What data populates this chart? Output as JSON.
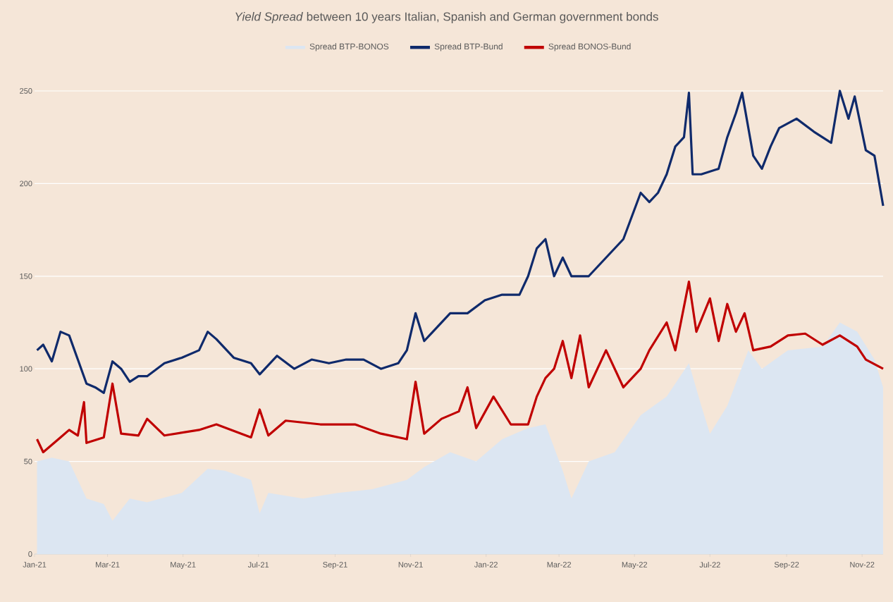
{
  "chart_data": {
    "type": "line",
    "title": "*Yield Spread* between 10 years Italian, Spanish and German government bonds",
    "xlim": [
      "2021-01-01",
      "2022-11-18"
    ],
    "ylim": [
      0,
      250
    ],
    "xticks": [
      {
        "value": "2021-01-01",
        "label": "Jan-21"
      },
      {
        "value": "2021-03-01",
        "label": "Mar-21"
      },
      {
        "value": "2021-05-01",
        "label": "May-21"
      },
      {
        "value": "2021-07-01",
        "label": "Jul-21"
      },
      {
        "value": "2021-09-01",
        "label": "Sep-21"
      },
      {
        "value": "2021-11-01",
        "label": "Nov-21"
      },
      {
        "value": "2022-01-01",
        "label": "Jan-22"
      },
      {
        "value": "2022-03-01",
        "label": "Mar-22"
      },
      {
        "value": "2022-05-01",
        "label": "May-22"
      },
      {
        "value": "2022-07-01",
        "label": "Jul-22"
      },
      {
        "value": "2022-09-01",
        "label": "Sep-22"
      },
      {
        "value": "2022-11-01",
        "label": "Nov-22"
      }
    ],
    "yticks": [
      0,
      50,
      100,
      150,
      200,
      250
    ],
    "grid": "y",
    "legend": "top",
    "series": [
      {
        "name": "Spread BTP-BONOS",
        "type": "area",
        "color": "#dce6f2",
        "x": [
          "2021-01-03",
          "2021-01-15",
          "2021-01-29",
          "2021-02-12",
          "2021-02-26",
          "2021-03-05",
          "2021-03-19",
          "2021-04-02",
          "2021-04-30",
          "2021-05-21",
          "2021-06-04",
          "2021-06-25",
          "2021-07-02",
          "2021-07-09",
          "2021-08-06",
          "2021-09-03",
          "2021-10-01",
          "2021-10-29",
          "2021-11-12",
          "2021-12-03",
          "2021-12-24",
          "2022-01-14",
          "2022-02-04",
          "2022-02-18",
          "2022-03-04",
          "2022-03-11",
          "2022-03-25",
          "2022-04-15",
          "2022-05-06",
          "2022-05-27",
          "2022-06-14",
          "2022-06-24",
          "2022-07-01",
          "2022-07-15",
          "2022-08-01",
          "2022-08-12",
          "2022-09-02",
          "2022-09-30",
          "2022-10-14",
          "2022-10-28",
          "2022-11-11",
          "2022-11-18"
        ],
        "values": [
          50,
          52,
          50,
          30,
          27,
          18,
          30,
          28,
          33,
          46,
          45,
          40,
          22,
          33,
          30,
          33,
          35,
          40,
          47,
          55,
          50,
          62,
          68,
          70,
          45,
          30,
          50,
          55,
          75,
          85,
          103,
          80,
          65,
          80,
          110,
          100,
          110,
          112,
          125,
          120,
          105,
          90
        ]
      },
      {
        "name": "Spread BTP-Bund",
        "color": "#0f2a6b",
        "x": [
          "2021-01-03",
          "2021-01-08",
          "2021-01-15",
          "2021-01-22",
          "2021-01-29",
          "2021-02-05",
          "2021-02-12",
          "2021-02-19",
          "2021-02-26",
          "2021-03-05",
          "2021-03-12",
          "2021-03-19",
          "2021-03-26",
          "2021-04-02",
          "2021-04-16",
          "2021-04-30",
          "2021-05-14",
          "2021-05-21",
          "2021-05-28",
          "2021-06-11",
          "2021-06-25",
          "2021-07-02",
          "2021-07-16",
          "2021-07-30",
          "2021-08-13",
          "2021-08-27",
          "2021-09-10",
          "2021-09-24",
          "2021-10-08",
          "2021-10-22",
          "2021-10-29",
          "2021-11-05",
          "2021-11-12",
          "2021-11-19",
          "2021-12-03",
          "2021-12-17",
          "2021-12-31",
          "2022-01-14",
          "2022-01-28",
          "2022-02-04",
          "2022-02-11",
          "2022-02-18",
          "2022-02-25",
          "2022-03-04",
          "2022-03-11",
          "2022-03-25",
          "2022-04-08",
          "2022-04-22",
          "2022-05-06",
          "2022-05-13",
          "2022-05-20",
          "2022-05-27",
          "2022-06-03",
          "2022-06-10",
          "2022-06-14",
          "2022-06-17",
          "2022-06-24",
          "2022-07-08",
          "2022-07-15",
          "2022-07-22",
          "2022-07-27",
          "2022-08-05",
          "2022-08-12",
          "2022-08-19",
          "2022-08-26",
          "2022-09-09",
          "2022-09-23",
          "2022-10-07",
          "2022-10-14",
          "2022-10-21",
          "2022-10-26",
          "2022-11-04",
          "2022-11-11",
          "2022-11-18"
        ],
        "values": [
          110,
          113,
          104,
          120,
          118,
          105,
          92,
          90,
          87,
          104,
          100,
          93,
          96,
          96,
          103,
          106,
          110,
          120,
          116,
          106,
          103,
          97,
          107,
          100,
          105,
          103,
          105,
          105,
          100,
          103,
          110,
          130,
          115,
          120,
          130,
          130,
          137,
          140,
          140,
          150,
          165,
          170,
          150,
          160,
          150,
          150,
          160,
          170,
          195,
          190,
          195,
          205,
          220,
          225,
          249,
          205,
          205,
          208,
          225,
          238,
          249,
          215,
          208,
          220,
          230,
          235,
          228,
          222,
          250,
          235,
          247,
          218,
          215,
          188
        ]
      },
      {
        "name": "Spread BONOS-Bund",
        "color": "#c00000",
        "x": [
          "2021-01-03",
          "2021-01-08",
          "2021-01-22",
          "2021-01-29",
          "2021-02-05",
          "2021-02-10",
          "2021-02-12",
          "2021-02-26",
          "2021-03-05",
          "2021-03-12",
          "2021-03-26",
          "2021-04-02",
          "2021-04-16",
          "2021-05-14",
          "2021-05-28",
          "2021-06-25",
          "2021-07-02",
          "2021-07-09",
          "2021-07-23",
          "2021-08-20",
          "2021-09-17",
          "2021-10-08",
          "2021-10-29",
          "2021-11-05",
          "2021-11-12",
          "2021-11-26",
          "2021-12-10",
          "2021-12-17",
          "2021-12-24",
          "2022-01-07",
          "2022-01-21",
          "2022-02-04",
          "2022-02-11",
          "2022-02-18",
          "2022-02-25",
          "2022-03-04",
          "2022-03-11",
          "2022-03-18",
          "2022-03-25",
          "2022-04-08",
          "2022-04-22",
          "2022-05-06",
          "2022-05-13",
          "2022-05-27",
          "2022-06-03",
          "2022-06-14",
          "2022-06-20",
          "2022-07-01",
          "2022-07-08",
          "2022-07-15",
          "2022-07-22",
          "2022-07-29",
          "2022-08-05",
          "2022-08-19",
          "2022-09-02",
          "2022-09-16",
          "2022-09-30",
          "2022-10-14",
          "2022-10-28",
          "2022-11-04",
          "2022-11-18"
        ],
        "values": [
          62,
          55,
          63,
          67,
          64,
          82,
          60,
          63,
          92,
          65,
          64,
          73,
          64,
          67,
          70,
          63,
          78,
          64,
          72,
          70,
          70,
          65,
          62,
          93,
          65,
          73,
          77,
          90,
          68,
          85,
          70,
          70,
          85,
          95,
          100,
          115,
          95,
          118,
          90,
          110,
          90,
          100,
          110,
          125,
          110,
          147,
          120,
          138,
          115,
          135,
          120,
          130,
          110,
          112,
          118,
          119,
          113,
          118,
          112,
          105,
          100
        ]
      }
    ]
  }
}
